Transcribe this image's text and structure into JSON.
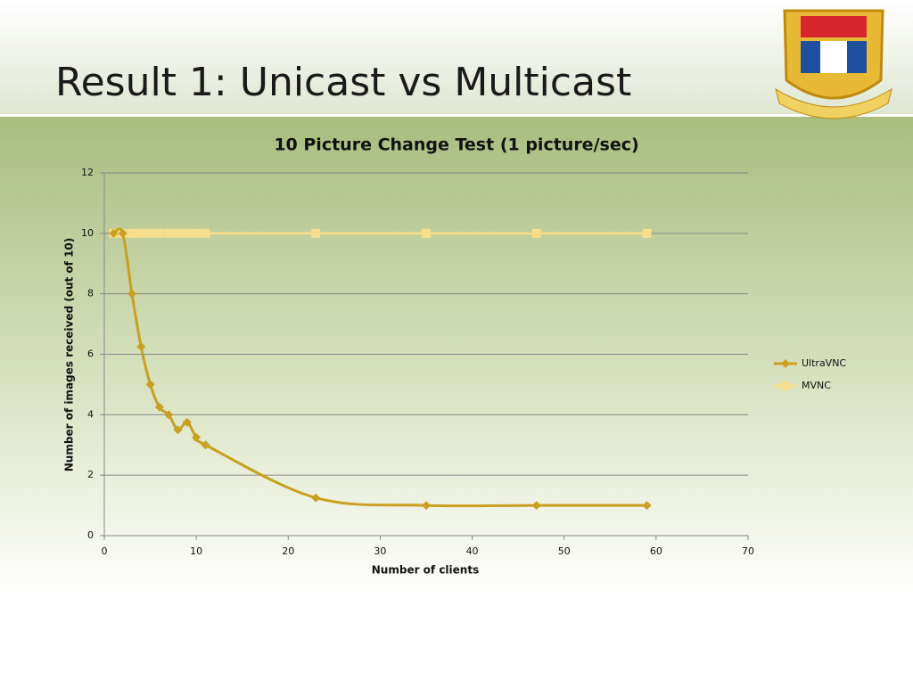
{
  "slide": {
    "title": "Result 1: Unicast vs Multicast"
  },
  "chart_data": {
    "type": "line",
    "title": "10 Picture Change Test (1 picture/sec)",
    "x_label": "Number of clients",
    "y_label": "Number of images received (out of 10)",
    "x": [
      1,
      2,
      3,
      4,
      5,
      6,
      7,
      8,
      9,
      10,
      11,
      23,
      35,
      47,
      59
    ],
    "series": [
      {
        "name": "UltraVNC",
        "color": "#c9a020",
        "marker": "diamond",
        "values": [
          10,
          10,
          8,
          6.25,
          5,
          4.25,
          4,
          3.5,
          3.75,
          3.25,
          3,
          1.25,
          1,
          1,
          1
        ]
      },
      {
        "name": "MVNC",
        "color": "#f6de8c",
        "marker": "square",
        "values": [
          10,
          10,
          10,
          10,
          10,
          10,
          10,
          10,
          10,
          10,
          10,
          10,
          10,
          10,
          10
        ]
      }
    ],
    "xlim": [
      0,
      70
    ],
    "xticks": [
      0,
      10,
      20,
      30,
      40,
      50,
      60,
      70
    ],
    "ylim": [
      0,
      12
    ],
    "yticks": [
      0,
      2,
      4,
      6,
      8,
      10,
      12
    ],
    "grid": true,
    "smooth": true,
    "legend": "right"
  }
}
